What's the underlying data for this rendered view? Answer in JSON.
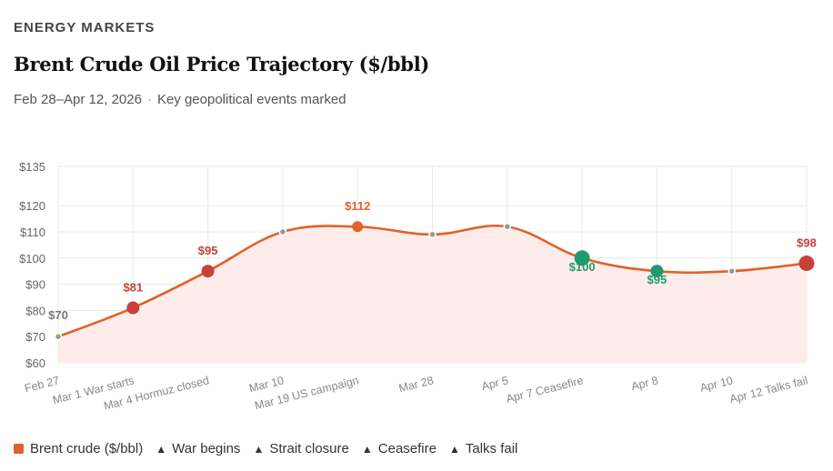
{
  "header": {
    "eyebrow": "ENERGY MARKETS",
    "title": "Brent Crude Oil Price Trajectory ($/bbl)",
    "subtitle_dates": "Feb 28–Apr 12, 2026",
    "subtitle_sep": "·",
    "subtitle_note": "Key geopolitical events marked"
  },
  "colors": {
    "line": "#e0622a",
    "fill": "#fdecea",
    "grid": "#e9e9e9",
    "event_red": "#c9403a",
    "event_green": "#1f9a6a",
    "plain_point": "#999999",
    "axis_text": "#666666"
  },
  "chart_data": {
    "type": "line",
    "title": "Brent Crude Oil Price Trajectory ($/bbl)",
    "xlabel": "",
    "ylabel": "",
    "ylim": [
      60,
      135
    ],
    "yticks": [
      60,
      70,
      80,
      90,
      100,
      110,
      120,
      135
    ],
    "ytick_prefix": "$",
    "grid": true,
    "series": [
      {
        "name": "Brent crude ($/bbl)",
        "categories": [
          "Feb 27",
          "Mar 1 War starts",
          "Mar 4 Hormuz closed",
          "Mar 10",
          "Mar 19 US campaign",
          "Mar 28",
          "Apr 5",
          "Apr 7 Ceasefire",
          "Apr 8",
          "Apr 10",
          "Apr 12 Talks fail"
        ],
        "values": [
          70,
          81,
          95,
          110,
          112,
          109,
          112,
          100,
          95,
          95,
          98
        ],
        "point_type": [
          "plain",
          "war",
          "strait",
          "plain",
          "war",
          "plain",
          "plain",
          "ceasefire",
          "ceasefire",
          "plain",
          "talks"
        ],
        "data_labels": [
          "$70",
          "$81",
          "$95",
          "",
          "$112",
          "",
          "",
          "$100",
          "$95",
          "",
          "$98"
        ]
      }
    ],
    "legend": [
      {
        "marker": "swatch",
        "label": "Brent crude ($/bbl)"
      },
      {
        "marker": "▲",
        "label": "War begins"
      },
      {
        "marker": "▲",
        "label": "Strait closure"
      },
      {
        "marker": "▲",
        "label": "Ceasefire"
      },
      {
        "marker": "▲",
        "label": "Talks fail"
      }
    ]
  }
}
